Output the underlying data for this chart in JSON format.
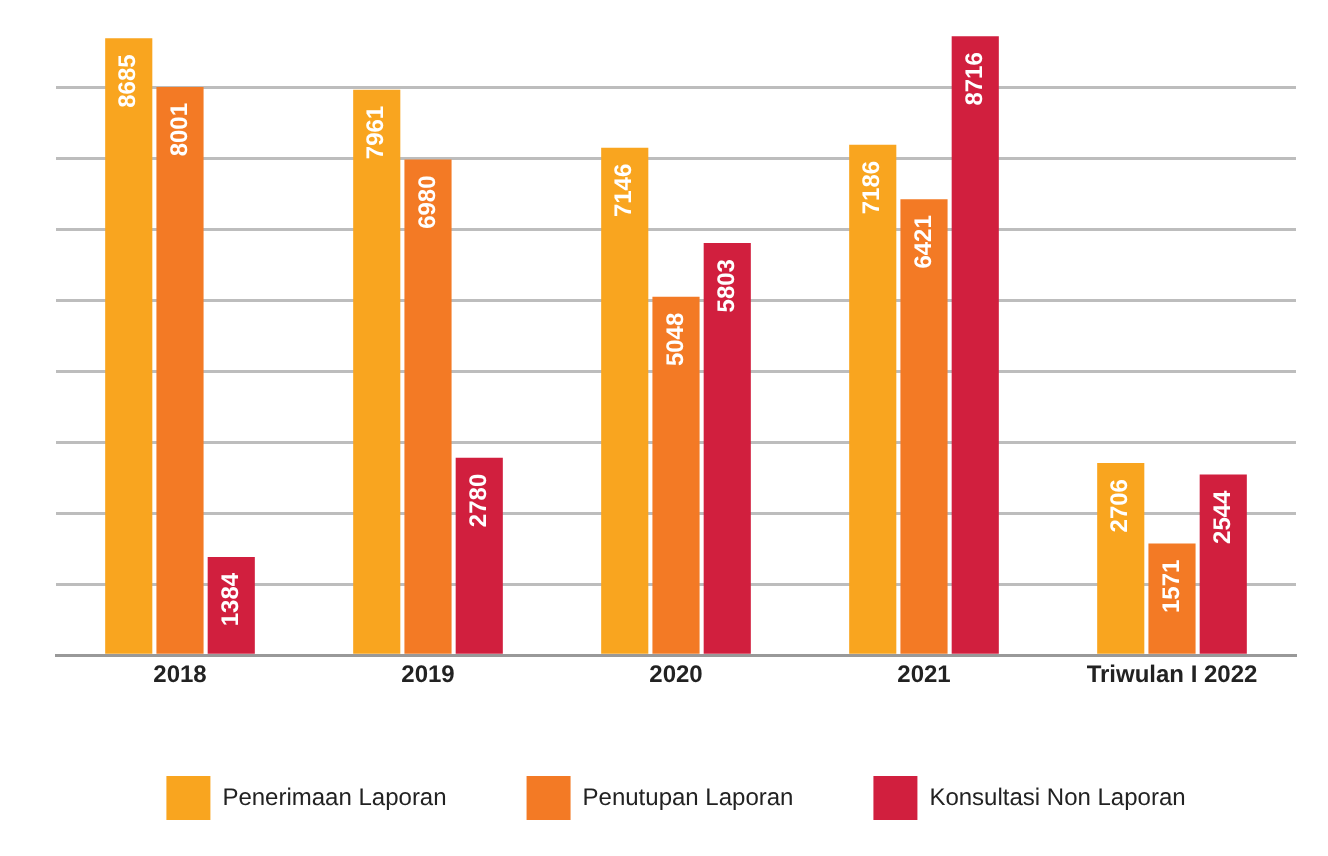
{
  "chart_data": {
    "type": "bar",
    "categories": [
      "2018",
      "2019",
      "2020",
      "2021",
      "Triwulan I 2022"
    ],
    "series": [
      {
        "name": "Penerimaan Laporan",
        "color": "#f9a51f",
        "values": [
          8685,
          7961,
          7146,
          7186,
          2706
        ]
      },
      {
        "name": "Penutupan Laporan",
        "color": "#f37a25",
        "values": [
          8001,
          6980,
          5048,
          6421,
          1571
        ]
      },
      {
        "name": "Konsultasi Non Laporan",
        "color": "#d11f3e",
        "values": [
          1384,
          2780,
          5803,
          8716,
          2544
        ]
      }
    ],
    "yticks": [
      {
        "value": 0,
        "label": null
      },
      {
        "value": 1000,
        "label": null
      },
      {
        "value": 2000,
        "label": null
      },
      {
        "value": 3000,
        "label": null
      },
      {
        "value": 4000,
        "label": null
      },
      {
        "value": 5000,
        "label": null
      },
      {
        "value": 6000,
        "label": null
      },
      {
        "value": 7000,
        "label": null
      },
      {
        "value": 8000,
        "label": null
      }
    ],
    "grid": "y",
    "legend": "bottom",
    "data_labels": true,
    "tick_labels": "x"
  }
}
